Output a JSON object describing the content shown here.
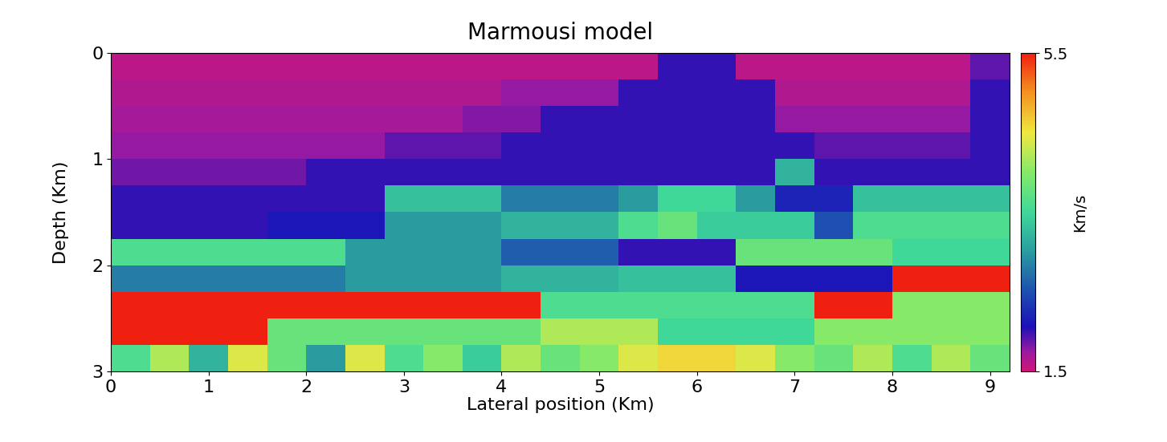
{
  "chart_data": {
    "type": "heatmap",
    "title": "Marmousi model",
    "x_label": "Lateral position (Km)",
    "y_label": "Depth (Km)",
    "xlim": [
      0,
      9.2
    ],
    "ylim": [
      3,
      0
    ],
    "xticks": [
      0,
      1,
      2,
      3,
      4,
      5,
      6,
      7,
      8,
      9
    ],
    "yticks": [
      0,
      1,
      2,
      3
    ],
    "x_edges": [
      0,
      0.4,
      0.8,
      1.2,
      1.6,
      2.0,
      2.4,
      2.8,
      3.2,
      3.6,
      4.0,
      4.4,
      4.8,
      5.2,
      5.6,
      6.0,
      6.4,
      6.8,
      7.2,
      7.6,
      8.0,
      8.4,
      8.8,
      9.2
    ],
    "y_edges": [
      0,
      0.25,
      0.5,
      0.75,
      1.0,
      1.25,
      1.5,
      1.75,
      2.0,
      2.25,
      2.5,
      2.75,
      3.0
    ],
    "cells": [
      [
        1.6,
        1.6,
        1.6,
        1.6,
        1.6,
        1.6,
        1.6,
        1.6,
        1.6,
        1.6,
        1.6,
        1.6,
        1.6,
        1.6,
        2.0,
        2.0,
        1.6,
        1.6,
        1.6,
        1.6,
        1.6,
        1.6,
        1.9
      ],
      [
        1.65,
        1.65,
        1.65,
        1.65,
        1.65,
        1.65,
        1.65,
        1.65,
        1.65,
        1.65,
        1.75,
        1.75,
        1.75,
        2.0,
        2.0,
        2.0,
        2.0,
        1.65,
        1.65,
        1.65,
        1.65,
        1.65,
        2.0
      ],
      [
        1.7,
        1.7,
        1.7,
        1.7,
        1.7,
        1.7,
        1.7,
        1.7,
        1.7,
        1.8,
        1.8,
        2.0,
        2.0,
        2.0,
        2.0,
        2.0,
        2.0,
        1.75,
        1.75,
        1.75,
        1.75,
        1.75,
        2.0
      ],
      [
        1.75,
        1.75,
        1.75,
        1.75,
        1.75,
        1.75,
        1.75,
        1.9,
        1.9,
        1.9,
        2.0,
        2.0,
        2.0,
        2.0,
        2.0,
        2.0,
        2.0,
        2.0,
        1.9,
        1.9,
        1.9,
        1.9,
        2.0
      ],
      [
        1.85,
        1.85,
        1.85,
        1.85,
        1.85,
        2.0,
        2.0,
        2.0,
        2.0,
        2.0,
        2.0,
        2.0,
        2.0,
        2.0,
        2.0,
        2.0,
        2.0,
        3.2,
        2.0,
        2.0,
        2.0,
        2.0,
        2.0
      ],
      [
        2.0,
        2.0,
        2.0,
        2.0,
        2.0,
        2.0,
        2.0,
        3.3,
        3.3,
        3.3,
        2.8,
        2.8,
        2.8,
        3.0,
        3.5,
        3.5,
        3.0,
        2.2,
        2.2,
        3.3,
        3.3,
        3.3,
        3.3
      ],
      [
        2.0,
        2.0,
        2.0,
        2.0,
        2.1,
        2.1,
        2.1,
        3.0,
        3.0,
        3.0,
        3.2,
        3.2,
        3.2,
        3.6,
        3.8,
        3.4,
        3.4,
        3.4,
        2.5,
        3.6,
        3.6,
        3.6,
        3.6
      ],
      [
        3.6,
        3.6,
        3.6,
        3.6,
        3.6,
        3.6,
        3.0,
        3.0,
        3.0,
        3.0,
        2.6,
        2.6,
        2.6,
        2.0,
        2.0,
        2.0,
        3.8,
        3.8,
        3.8,
        3.8,
        3.5,
        3.5,
        3.5
      ],
      [
        2.8,
        2.8,
        2.8,
        2.8,
        2.8,
        2.8,
        3.0,
        3.0,
        3.0,
        3.0,
        3.2,
        3.2,
        3.2,
        3.3,
        3.3,
        3.3,
        2.1,
        2.1,
        2.1,
        2.1,
        5.5,
        5.5,
        5.5
      ],
      [
        5.5,
        5.5,
        5.5,
        5.5,
        5.5,
        5.5,
        5.5,
        5.5,
        5.5,
        5.5,
        5.5,
        3.6,
        3.6,
        3.6,
        3.6,
        3.6,
        3.6,
        3.6,
        5.5,
        5.5,
        4.0,
        4.0,
        4.0
      ],
      [
        5.5,
        5.5,
        5.5,
        5.5,
        3.8,
        3.8,
        3.8,
        3.8,
        3.8,
        3.8,
        3.8,
        4.2,
        4.2,
        4.2,
        3.5,
        3.5,
        3.5,
        3.5,
        4.0,
        4.0,
        4.0,
        4.0,
        4.0
      ],
      [
        3.6,
        4.2,
        3.2,
        4.4,
        3.8,
        3.0,
        4.4,
        3.6,
        4.0,
        3.4,
        4.2,
        3.8,
        4.0,
        4.4,
        4.6,
        4.6,
        4.4,
        4.0,
        3.8,
        4.2,
        3.6,
        4.2,
        3.8
      ]
    ],
    "colorbar_label": "Km/s",
    "colorbar_range": [
      1.5,
      5.5
    ],
    "colorbar_ticks": [
      1.5,
      5.5
    ]
  }
}
